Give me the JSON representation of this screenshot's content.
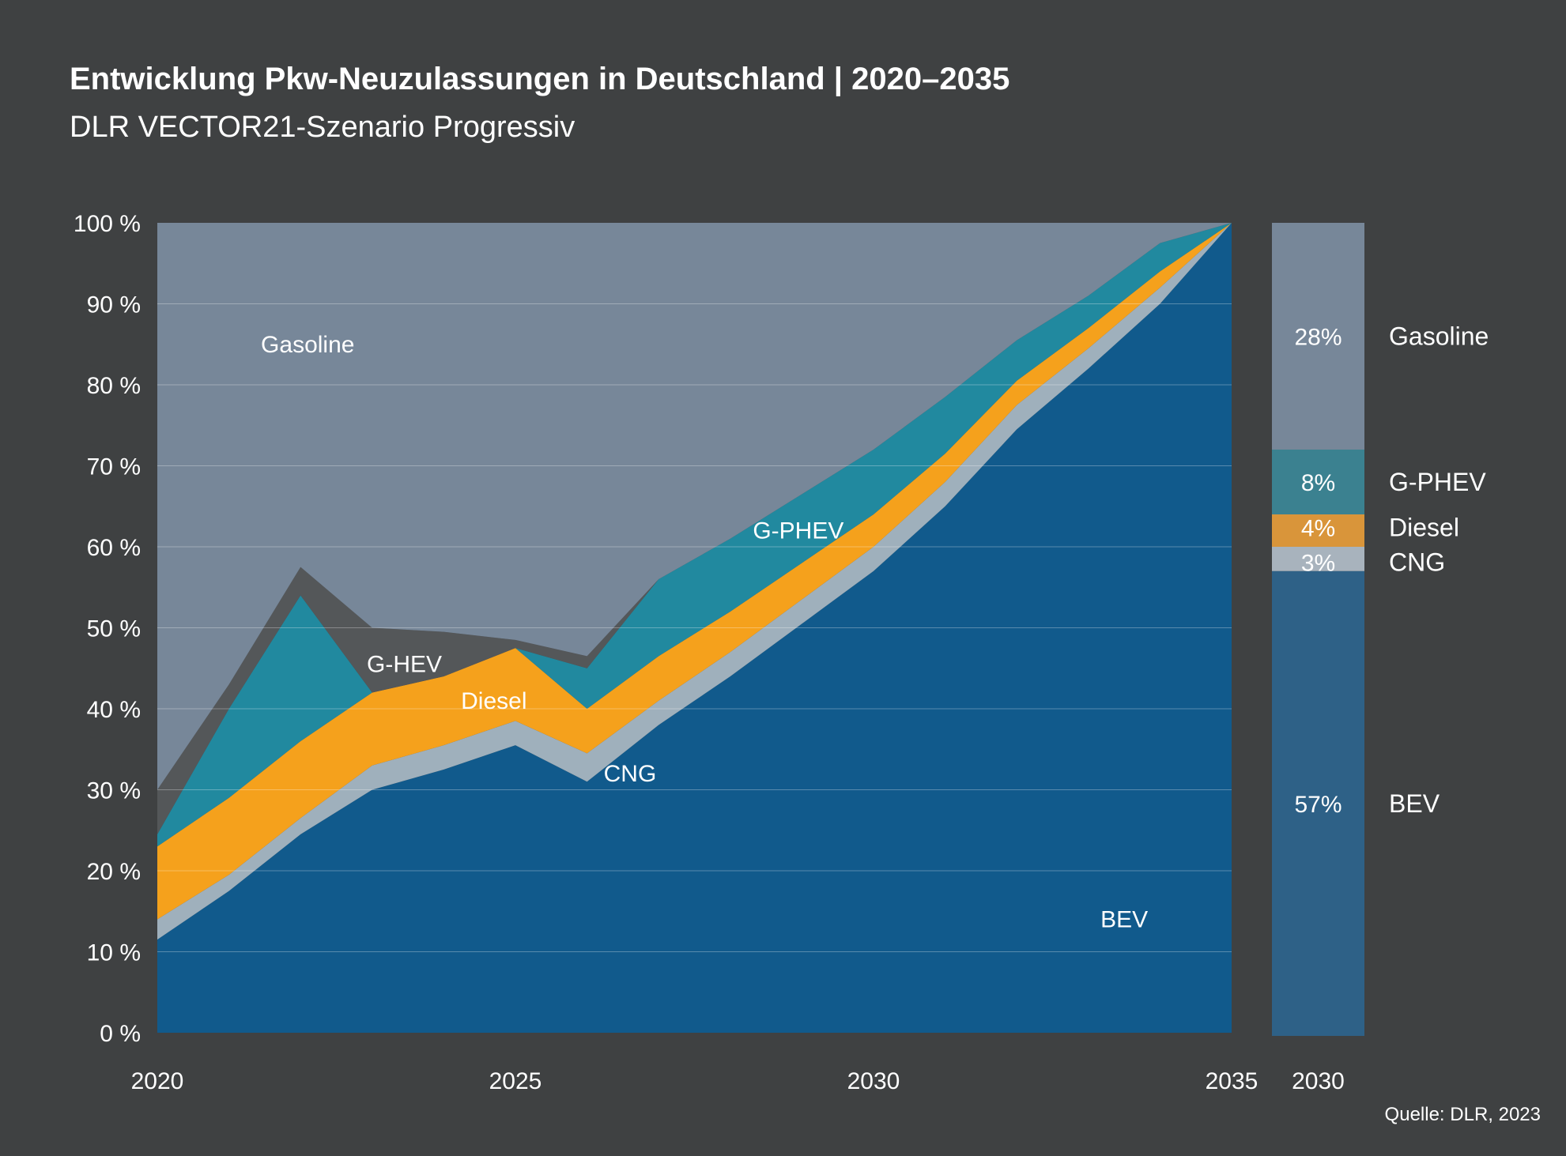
{
  "chart_data": {
    "type": "area",
    "stacked": true,
    "title": "Entwicklung Pkw-Neuzulassungen in Deutschland | 2020–2035",
    "subtitle": "DLR VECTOR21-Szenario Progressiv",
    "source": "Quelle: DLR, 2023",
    "xlabel": "",
    "ylabel": "",
    "x": [
      2020,
      2021,
      2022,
      2023,
      2024,
      2025,
      2026,
      2027,
      2028,
      2029,
      2030,
      2031,
      2032,
      2033,
      2034,
      2035
    ],
    "xlim": [
      2020,
      2035
    ],
    "ylim": [
      0,
      100
    ],
    "x_ticks": [
      "2020",
      "2025",
      "2030",
      "2035"
    ],
    "y_ticks": [
      "0 %",
      "10 %",
      "20 %",
      "30 %",
      "40 %",
      "50 %",
      "60 %",
      "70 %",
      "80 %",
      "90 %",
      "100 %"
    ],
    "series": [
      {
        "name": "BEV",
        "color": "#115a8c",
        "values": [
          11.5,
          17.5,
          24.5,
          30,
          32.5,
          35.5,
          31,
          38,
          44,
          50.5,
          57,
          65,
          74.5,
          82,
          90,
          100
        ]
      },
      {
        "name": "CNG",
        "color": "#9fb0bc",
        "values": [
          2.5,
          2,
          2,
          3,
          3,
          3,
          3.5,
          3,
          3,
          3,
          3,
          3,
          3,
          2.5,
          2,
          0
        ]
      },
      {
        "name": "Diesel",
        "color": "#f5a11c",
        "values": [
          9,
          9.5,
          9.5,
          9,
          8.5,
          9,
          5.5,
          5.5,
          5,
          4.5,
          4,
          3.5,
          3,
          2.5,
          2,
          0
        ]
      },
      {
        "name": "G-PHEV",
        "color": "#21899f",
        "values": [
          1.5,
          11,
          18,
          0,
          0,
          0,
          5,
          9.5,
          9,
          8.5,
          8,
          7,
          5,
          4,
          3.5,
          0
        ]
      },
      {
        "name": "G-HEV",
        "color": "#545759",
        "values": [
          5.5,
          3,
          3.5,
          8,
          5.5,
          1,
          1.5,
          0,
          0,
          0,
          0,
          0,
          0,
          0,
          0,
          0
        ]
      },
      {
        "name": "Gasoline",
        "color": "#778799",
        "values": [
          70,
          57,
          42.5,
          50,
          50.5,
          51.5,
          53.5,
          44,
          39,
          33.5,
          28,
          21.5,
          14.5,
          9,
          2.5,
          0
        ]
      }
    ],
    "area_labels": [
      "Gasoline",
      "G-HEV",
      "Diesel",
      "G-PHEV",
      "CNG",
      "BEV"
    ],
    "bar_2030": {
      "x_label": "2030",
      "segments": [
        {
          "name": "BEV",
          "value": 57,
          "label": "57%",
          "color": "#2e6187"
        },
        {
          "name": "CNG",
          "value": 3,
          "label": "3%",
          "color": "#a8b3bd"
        },
        {
          "name": "Diesel",
          "value": 4,
          "label": "4%",
          "color": "#d9953a"
        },
        {
          "name": "G-PHEV",
          "value": 8,
          "label": "8%",
          "color": "#3b8190"
        },
        {
          "name": "Gasoline",
          "value": 28,
          "label": "28%",
          "color": "#778799"
        }
      ]
    }
  }
}
